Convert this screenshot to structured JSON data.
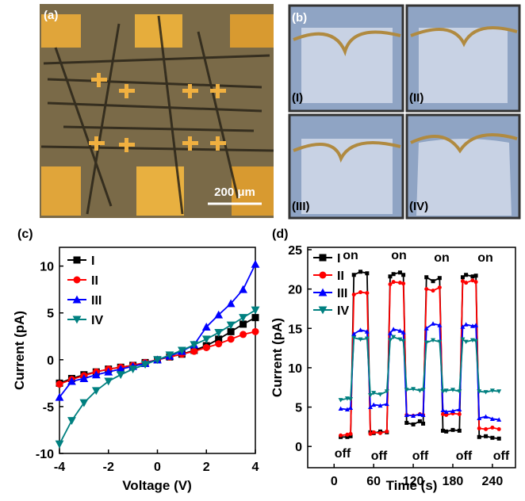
{
  "panels": {
    "a": {
      "label": "(a)",
      "scale_bar": "200 μm"
    },
    "b": {
      "label": "(b)",
      "sub_labels": [
        "(I)",
        "(II)",
        "(III)",
        "(IV)"
      ]
    }
  },
  "chart_data": [
    {
      "type": "line",
      "panel_label": "(c)",
      "xlabel": "Voltage (V)",
      "ylabel": "Current (pA)",
      "x": [
        -4,
        -3.5,
        -3,
        -2.5,
        -2,
        -1.5,
        -1,
        -0.5,
        0,
        0.5,
        1,
        1.5,
        2,
        2.5,
        3,
        3.5,
        4
      ],
      "series": [
        {
          "name": "I",
          "color": "#000000",
          "marker": "square",
          "values": [
            -2.5,
            -2,
            -1.6,
            -1.3,
            -1.0,
            -0.8,
            -0.6,
            -0.3,
            0,
            0.3,
            0.6,
            1.0,
            1.5,
            2.2,
            3.0,
            3.8,
            4.5
          ]
        },
        {
          "name": "II",
          "color": "#ff0000",
          "marker": "circle",
          "values": [
            -2.6,
            -2.1,
            -1.7,
            -1.3,
            -1.0,
            -0.8,
            -0.6,
            -0.3,
            0,
            0.3,
            0.6,
            0.9,
            1.3,
            1.7,
            2.2,
            2.7,
            3.0
          ]
        },
        {
          "name": "III",
          "color": "#0000ff",
          "marker": "triangle-up",
          "values": [
            -4.0,
            -2.3,
            -2.0,
            -1.6,
            -1.3,
            -1.0,
            -0.7,
            -0.4,
            0,
            0.4,
            0.9,
            1.6,
            3.5,
            4.8,
            6.0,
            7.5,
            10.2
          ]
        },
        {
          "name": "IV",
          "color": "#008080",
          "marker": "triangle-down",
          "values": [
            -9.0,
            -6.5,
            -4.6,
            -3.3,
            -2.3,
            -1.6,
            -1.0,
            -0.5,
            0,
            0.5,
            1.0,
            1.6,
            2.2,
            2.9,
            3.7,
            4.5,
            5.3
          ]
        }
      ],
      "xlim": [
        -4,
        4
      ],
      "ylim": [
        -10,
        12
      ],
      "xticks": [
        -4,
        -2,
        0,
        2,
        4
      ],
      "yticks": [
        -10,
        -5,
        0,
        5,
        10
      ]
    },
    {
      "type": "line",
      "panel_label": "(d)",
      "xlabel": "Time (s)",
      "ylabel": "Current (pA)",
      "annotations": [
        "on",
        "on",
        "on",
        "on",
        "off",
        "off",
        "off",
        "off",
        "off"
      ],
      "x": [
        10,
        20,
        25,
        30,
        40,
        50,
        55,
        60,
        70,
        80,
        85,
        90,
        100,
        105,
        110,
        120,
        130,
        135,
        140,
        150,
        160,
        165,
        170,
        180,
        190,
        195,
        200,
        210,
        215,
        220,
        230,
        240,
        250
      ],
      "series": [
        {
          "name": "I",
          "color": "#000000",
          "marker": "square",
          "values": [
            1.2,
            1.2,
            1.3,
            21.8,
            22.2,
            22.0,
            1.8,
            1.7,
            1.9,
            1.8,
            21.6,
            21.9,
            22.1,
            21.8,
            3.0,
            2.8,
            3.2,
            2.9,
            21.5,
            21.0,
            21.4,
            2.0,
            1.9,
            2.1,
            2.0,
            21.5,
            21.8,
            21.6,
            21.7,
            1.2,
            1.3,
            1.1,
            1.0
          ]
        },
        {
          "name": "II",
          "color": "#ff0000",
          "marker": "circle",
          "values": [
            1.4,
            1.5,
            1.6,
            19.3,
            19.6,
            19.5,
            1.6,
            1.8,
            1.7,
            1.9,
            20.6,
            20.9,
            20.8,
            20.7,
            4.0,
            3.9,
            4.1,
            4.0,
            20.0,
            19.8,
            20.2,
            4.1,
            4.0,
            4.2,
            4.1,
            21.0,
            20.8,
            21.1,
            20.9,
            2.3,
            2.2,
            2.4,
            2.2
          ]
        },
        {
          "name": "III",
          "color": "#0000ff",
          "marker": "triangle-up",
          "values": [
            4.8,
            4.7,
            4.9,
            14.3,
            14.8,
            14.6,
            5.0,
            5.3,
            5.2,
            5.4,
            14.4,
            14.9,
            14.7,
            14.5,
            4.0,
            3.9,
            4.1,
            4.0,
            15.0,
            15.6,
            15.4,
            4.6,
            4.4,
            4.5,
            4.7,
            15.2,
            15.5,
            15.3,
            15.4,
            3.6,
            3.8,
            3.5,
            3.4
          ]
        },
        {
          "name": "IV",
          "color": "#008080",
          "marker": "triangle-down",
          "values": [
            5.9,
            6.1,
            6.0,
            13.8,
            13.6,
            13.7,
            6.5,
            6.8,
            6.6,
            7.0,
            13.5,
            13.9,
            13.6,
            13.4,
            7.2,
            7.3,
            7.1,
            7.2,
            13.2,
            13.5,
            13.3,
            7.0,
            7.1,
            7.2,
            7.0,
            13.6,
            13.3,
            13.5,
            13.4,
            7.0,
            6.9,
            7.1,
            7.0
          ]
        }
      ],
      "xlim": [
        -40,
        275
      ],
      "ylim": [
        -2.7,
        25.3
      ],
      "xticks": [
        0,
        60,
        120,
        180,
        240
      ],
      "yticks": [
        0,
        5,
        10,
        15,
        20,
        25
      ]
    }
  ]
}
